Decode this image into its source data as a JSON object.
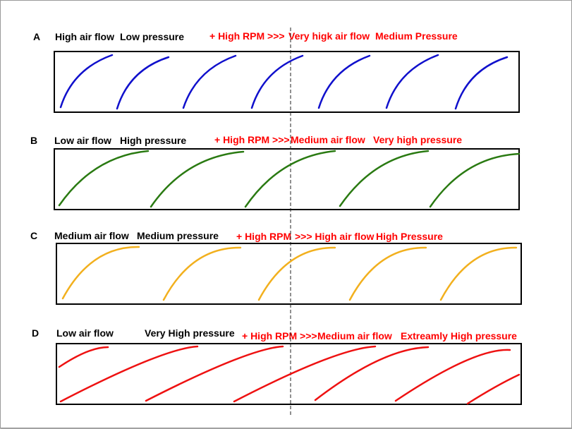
{
  "rows": [
    {
      "letter": "A",
      "left_text_1": "High air flow",
      "left_text_2": "Low pressure",
      "right_text_1": "+ High RPM >>>",
      "right_text_2": "Very higk air flow",
      "right_text_3": "Medium Pressure",
      "blade_color": "#1010cc"
    },
    {
      "letter": "B",
      "left_text_1": "Low air flow",
      "left_text_2": "High pressure",
      "right_text_1": "+ High RPM >>>",
      "right_text_2": "Medium air flow",
      "right_text_3": "Very high pressure",
      "blade_color": "#2a7a12"
    },
    {
      "letter": "C",
      "left_text_1": "Medium air flow",
      "left_text_2": "Medium pressure",
      "right_text_1": "+ High RPM",
      "right_text_2": ">>> High air flow",
      "right_text_3": "High Pressure",
      "blade_color": "#f2b01e"
    },
    {
      "letter": "D",
      "left_text_1": "Low air flow",
      "left_text_2": "Very High pressure",
      "right_text_1": "+ High RPM >>>",
      "right_text_2": "Medium air flow",
      "right_text_3": "Extreamly High pressure",
      "blade_color": "#ee1111"
    }
  ]
}
